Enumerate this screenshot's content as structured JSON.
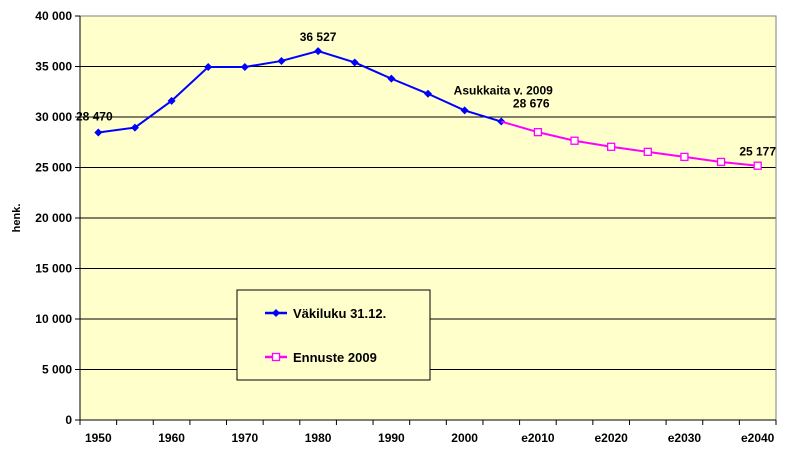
{
  "chart_data": {
    "type": "line",
    "ylabel": "henk.",
    "ylim": [
      0,
      40000
    ],
    "yticks": [
      "0",
      "5 000",
      "10 000",
      "15 000",
      "20 000",
      "25 000",
      "30 000",
      "35 000",
      "40 000"
    ],
    "xtick_labels": [
      "1950",
      "1960",
      "1970",
      "1980",
      "1990",
      "2000",
      "e2010",
      "e2020",
      "e2030",
      "e2040"
    ],
    "xtick_years": [
      1950,
      1960,
      1970,
      1980,
      1990,
      2000,
      2010,
      2020,
      2030,
      2040
    ],
    "xlim": [
      1950,
      2040
    ],
    "grid": true,
    "legend_position": "center-left",
    "background_color": "#FFFFCC",
    "series": [
      {
        "name": "Väkiluku 31.12.",
        "color": "#0000FF",
        "marker": "diamond",
        "x": [
          1950,
          1955,
          1960,
          1965,
          1970,
          1975,
          1980,
          1985,
          1990,
          1995,
          2000,
          2005
        ],
        "values": [
          28470,
          28950,
          31600,
          34950,
          34950,
          35550,
          36527,
          35400,
          33800,
          32300,
          30650,
          29550
        ]
      },
      {
        "name": "Ennuste 2009",
        "color": "#FF00FF",
        "marker": "square-open",
        "x": [
          2005,
          2010,
          2015,
          2020,
          2025,
          2030,
          2035,
          2040
        ],
        "values": [
          29550,
          28500,
          27650,
          27050,
          26550,
          26050,
          25550,
          25177
        ]
      }
    ],
    "annotations": [
      {
        "text": "28 470",
        "x": 1950,
        "y": 28470
      },
      {
        "text": "36 527",
        "x": 1980,
        "y": 36527
      },
      {
        "text": "Asukkaita v. 2009",
        "x": 2005,
        "y": 29550
      },
      {
        "text": "28 676",
        "x": 2005,
        "y": 29550
      },
      {
        "text": "25 177",
        "x": 2040,
        "y": 25177
      }
    ]
  }
}
